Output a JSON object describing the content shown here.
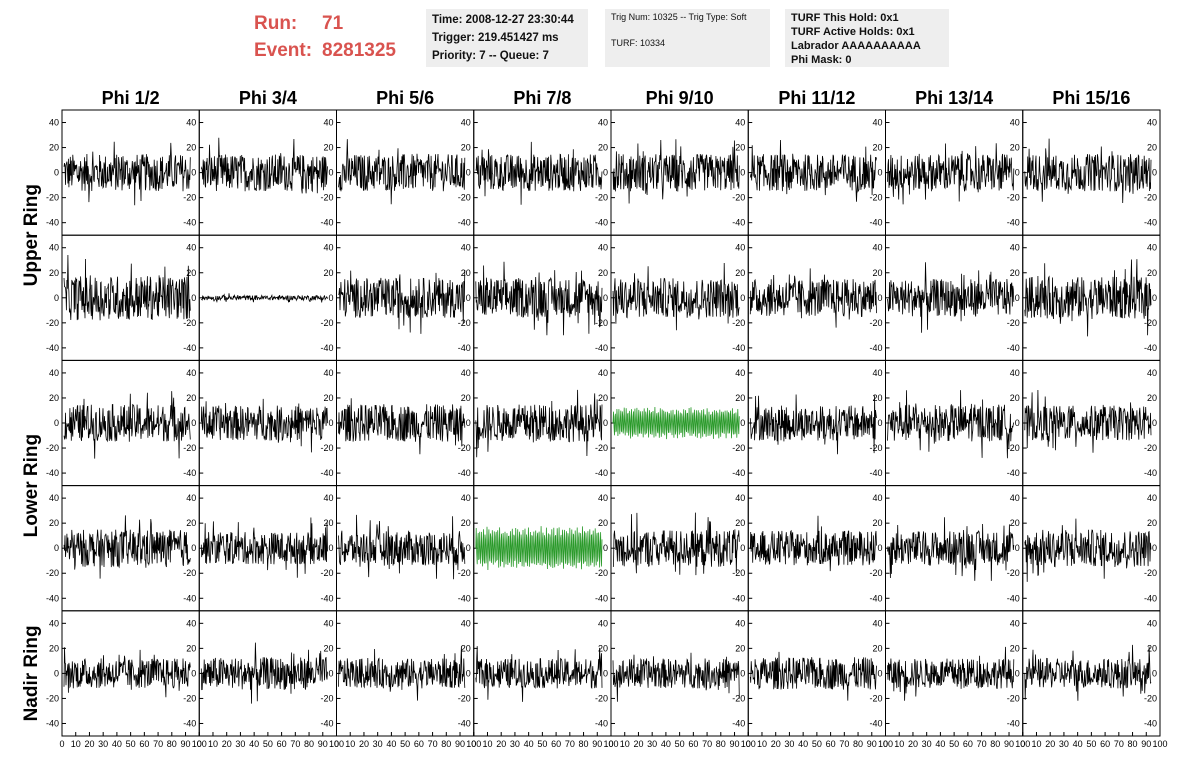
{
  "header": {
    "run_label": "Run:",
    "run_value": "71",
    "event_label": "Event:",
    "event_value": "8281325",
    "time": "Time: 2008-12-27 23:30:44",
    "trigger": "Trigger: 219.451427 ms",
    "priority": "Priority: 7 -- Queue: 7",
    "trig_num": "Trig Num: 10325 -- Trig Type: Soft",
    "turf_num": "TURF: 10334",
    "turf_hold": "TURF This Hold: 0x1",
    "turf_active": "TURF Active Holds: 0x1",
    "labrador": "Labrador AAAAAAAAAA",
    "phi_mask": "Phi Mask: 0"
  },
  "colors": {
    "trace": "#000000",
    "highlight": "#2a9a2a",
    "header_accent": "#d9534f"
  },
  "chart_data": {
    "type": "line",
    "columns": [
      "Phi 1/2",
      "Phi 3/4",
      "Phi 5/6",
      "Phi 7/8",
      "Phi 9/10",
      "Phi 11/12",
      "Phi 13/14",
      "Phi 15/16"
    ],
    "rows": [
      "Upper Ring",
      "Lower Ring",
      "Nadir Ring"
    ],
    "ylim": [
      -50,
      50
    ],
    "yticks": [
      -40,
      -20,
      0,
      20,
      40
    ],
    "xlim": [
      0,
      100
    ],
    "xticks": [
      0,
      10,
      20,
      30,
      40,
      50,
      60,
      70,
      80,
      90,
      100
    ],
    "xtick_labels": [
      "0",
      "10",
      "20",
      "30",
      "40",
      "50",
      "60",
      "70",
      "80",
      "90",
      "100"
    ],
    "panel_rows": 5,
    "samples_per_trace": 260,
    "trace_amplitudes": [
      [
        15,
        15,
        15,
        15,
        15,
        15,
        15,
        15
      ],
      [
        18,
        2,
        16,
        16,
        16,
        15,
        15,
        17
      ],
      [
        15,
        14,
        15,
        15,
        13,
        14,
        15,
        14
      ],
      [
        15,
        13,
        14,
        18,
        15,
        14,
        14,
        15
      ],
      [
        12,
        13,
        12,
        12,
        12,
        13,
        12,
        12
      ]
    ],
    "highlighted_panels": [
      [
        2,
        4
      ],
      [
        3,
        3
      ]
    ]
  }
}
